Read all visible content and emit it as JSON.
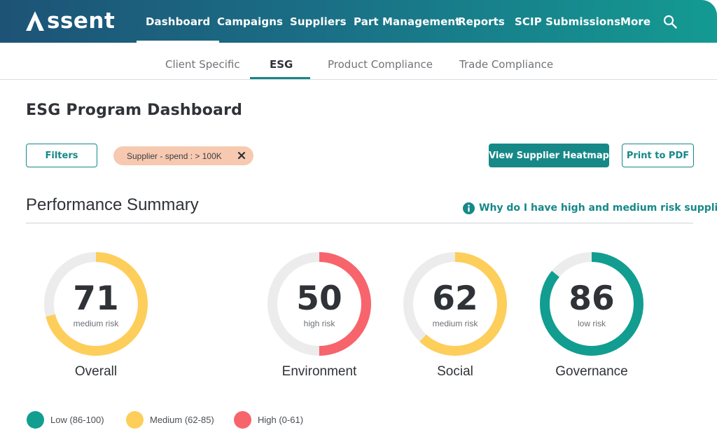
{
  "brand": {
    "name": "Assent"
  },
  "nav": {
    "items": [
      "Dashboard",
      "Campaigns",
      "Suppliers",
      "Part Management",
      "Reports",
      "SCIP Submissions",
      "More"
    ],
    "active": "Dashboard"
  },
  "subtabs": {
    "items": [
      "Client Specific",
      "ESG",
      "Product Compliance",
      "Trade Compliance"
    ],
    "active": "ESG"
  },
  "page": {
    "title": "ESG Program Dashboard"
  },
  "toolbar": {
    "filters_label": "Filters",
    "chip_label": "Supplier - spend : > 100K",
    "heatmap_label": "View Supplier Heatmap",
    "pdf_label": "Print to PDF"
  },
  "summary": {
    "title": "Performance Summary",
    "help_text": "Why do I have high and medium risk suppliers?"
  },
  "gauges": [
    {
      "score": "71",
      "risk": "medium risk",
      "label": "Overall",
      "fraction": 0.71,
      "color": "#fdce5a"
    },
    {
      "score": "50",
      "risk": "high risk",
      "label": "Environment",
      "fraction": 0.5,
      "color": "#f7646b"
    },
    {
      "score": "62",
      "risk": "medium risk",
      "label": "Social",
      "fraction": 0.62,
      "color": "#fdce5a"
    },
    {
      "score": "86",
      "risk": "low risk",
      "label": "Governance",
      "fraction": 0.86,
      "color": "#129d91"
    }
  ],
  "legend": [
    {
      "label": "Low (86-100)",
      "color": "#129d91"
    },
    {
      "label": "Medium (62-85)",
      "color": "#fdce5a"
    },
    {
      "label": "High (0-61)",
      "color": "#f7646b"
    }
  ],
  "colors": {
    "accent": "#178888",
    "nav_gradient_start": "#1d5376",
    "nav_gradient_end": "#149a92",
    "track": "#ececec",
    "chip": "#f7c9b0"
  },
  "icons": {
    "search": "search-icon",
    "close": "close-icon",
    "info": "info-icon"
  }
}
